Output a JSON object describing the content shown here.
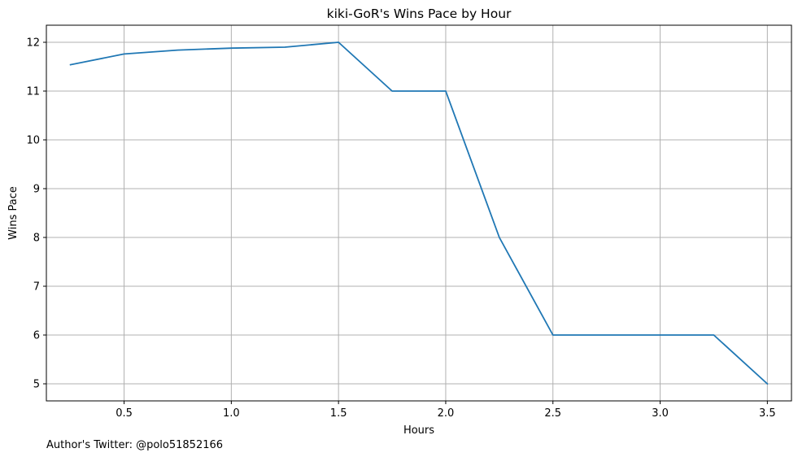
{
  "chart_data": {
    "type": "line",
    "title": "kiki-GoR's Wins Pace by Hour",
    "xlabel": "Hours",
    "ylabel": "Wins Pace",
    "x": [
      0.25,
      0.5,
      0.75,
      1.0,
      1.25,
      1.5,
      1.75,
      2.0,
      2.25,
      2.5,
      2.75,
      3.0,
      3.25,
      3.5
    ],
    "series": [
      {
        "values": [
          11.54,
          11.76,
          11.84,
          11.88,
          11.9,
          12.0,
          11.0,
          11.0,
          8.0,
          6.0,
          6.0,
          6.0,
          6.0,
          5.0
        ],
        "color": "#1f77b4"
      }
    ],
    "xlim": [
      0.1375,
      3.6125
    ],
    "ylim": [
      4.65,
      12.35
    ],
    "xticks": [
      0.5,
      1.0,
      1.5,
      2.0,
      2.5,
      3.0,
      3.5
    ],
    "xtick_labels": [
      "0.5",
      "1.0",
      "1.5",
      "2.0",
      "2.5",
      "3.0",
      "3.5"
    ],
    "yticks": [
      5,
      6,
      7,
      8,
      9,
      10,
      11,
      12
    ],
    "ytick_labels": [
      "5",
      "6",
      "7",
      "8",
      "9",
      "10",
      "11",
      "12"
    ],
    "grid": true,
    "grid_color": "#b0b0b0",
    "footnote": "Author's Twitter: @polo51852166"
  }
}
